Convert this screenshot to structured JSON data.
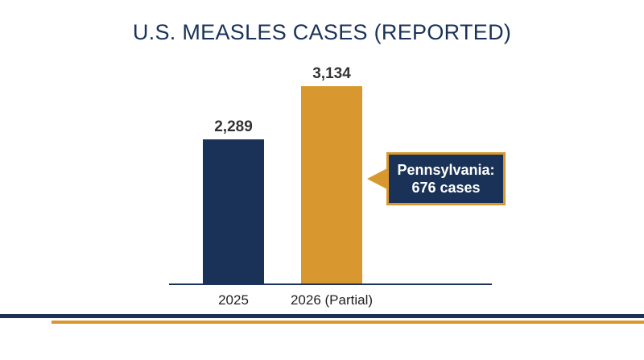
{
  "page": {
    "title": "U.S. MEASLES CASES (REPORTED)"
  },
  "colors": {
    "navy": "#1a3257",
    "gold": "#d9982f",
    "value_text": "#333333",
    "axis": "#1a3257"
  },
  "callout": {
    "line1": "Pennsylvania:",
    "line2": "676 cases"
  },
  "chart_data": {
    "type": "bar",
    "title": "U.S. MEASLES CASES (REPORTED)",
    "categories": [
      "2025",
      "2026 (Partial)"
    ],
    "values": [
      2289,
      3134
    ],
    "value_labels": [
      "2,289",
      "3,134"
    ],
    "bar_colors": [
      "#1a3257",
      "#d9982f"
    ],
    "xlabel": "",
    "ylabel": "",
    "ylim": [
      0,
      3134
    ],
    "grid": false,
    "legend": "none",
    "annotations": [
      {
        "text": "Pennsylvania: 676 cases",
        "attached_to": "2026 (Partial)"
      }
    ]
  }
}
